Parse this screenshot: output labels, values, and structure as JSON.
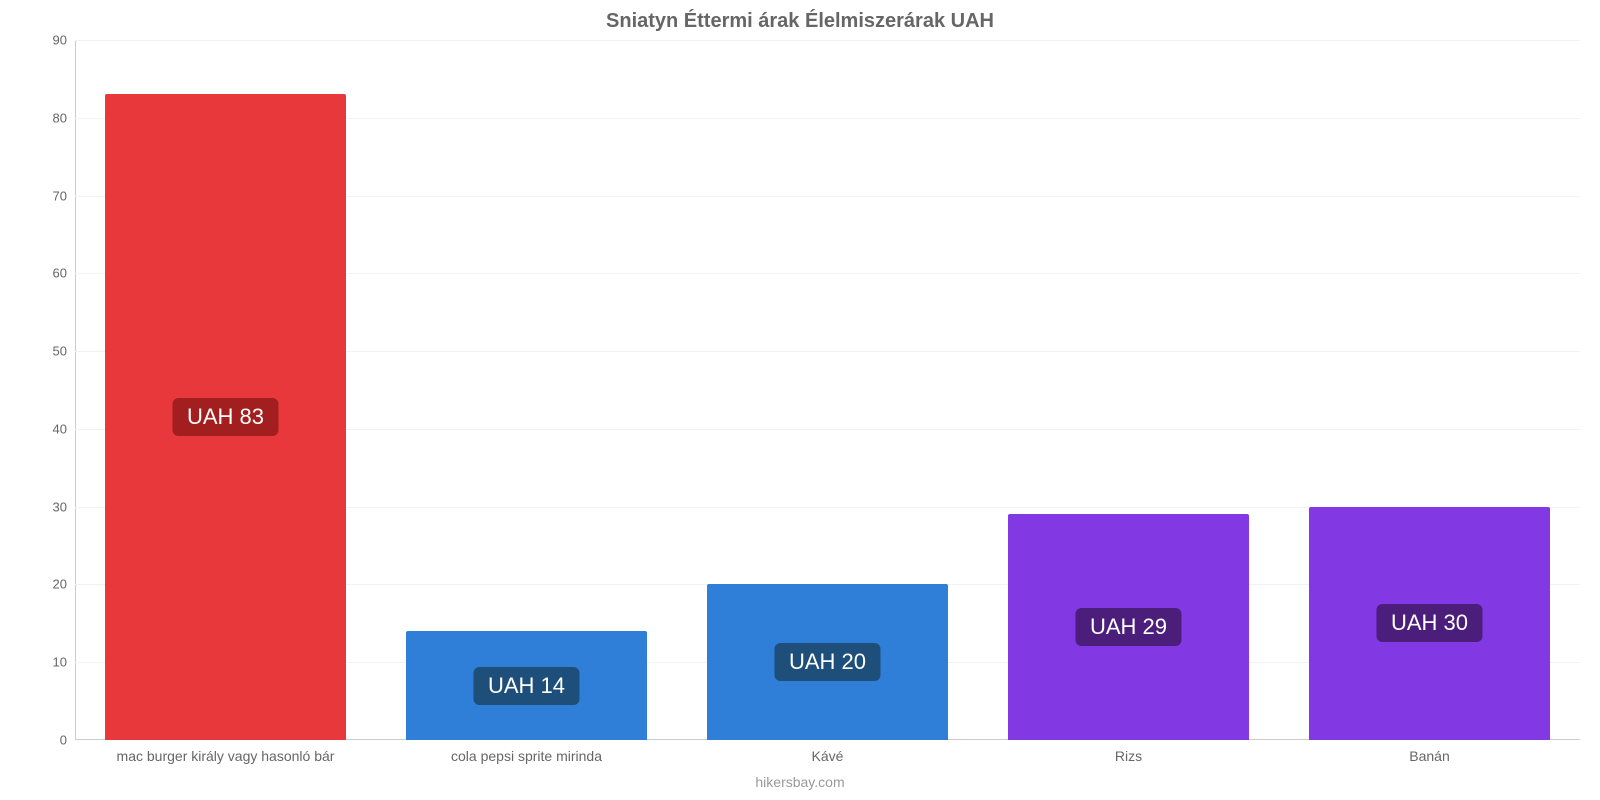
{
  "chart": {
    "type": "bar",
    "title": "Sniatyn Éttermi árak Élelmiszerárak UAH",
    "title_fontsize": 20,
    "title_color": "#666666",
    "background_color": "#ffffff",
    "grid_color": "#f2f2f2",
    "axis_line_color": "#cccccc",
    "axis_label_color": "#666666",
    "axis_fontsize": 13,
    "category_fontsize": 14,
    "ylim": [
      0,
      90
    ],
    "ytick_step": 10,
    "yticks": [
      0,
      10,
      20,
      30,
      40,
      50,
      60,
      70,
      80,
      90
    ],
    "bar_width_pct": 80,
    "categories": [
      "mac burger király vagy hasonló bár",
      "cola pepsi sprite mirinda",
      "Kávé",
      "Rizs",
      "Banán"
    ],
    "values": [
      83,
      14,
      20,
      29,
      30
    ],
    "bar_colors": [
      "#e8383b",
      "#2f7ed8",
      "#2f7ed8",
      "#8238e2",
      "#8238e2"
    ],
    "bar_label_prefix": "UAH ",
    "bar_label_bg": [
      "#a31e1e",
      "#1e4e7a",
      "#1e4e7a",
      "#4a1e7a",
      "#4a1e7a"
    ],
    "bar_label_fontsize": 22,
    "bar_label_color": "#ffffff",
    "bar_label_radius": 6
  },
  "footer": {
    "text": "hikersbay.com",
    "color": "#999999",
    "fontsize": 14
  }
}
